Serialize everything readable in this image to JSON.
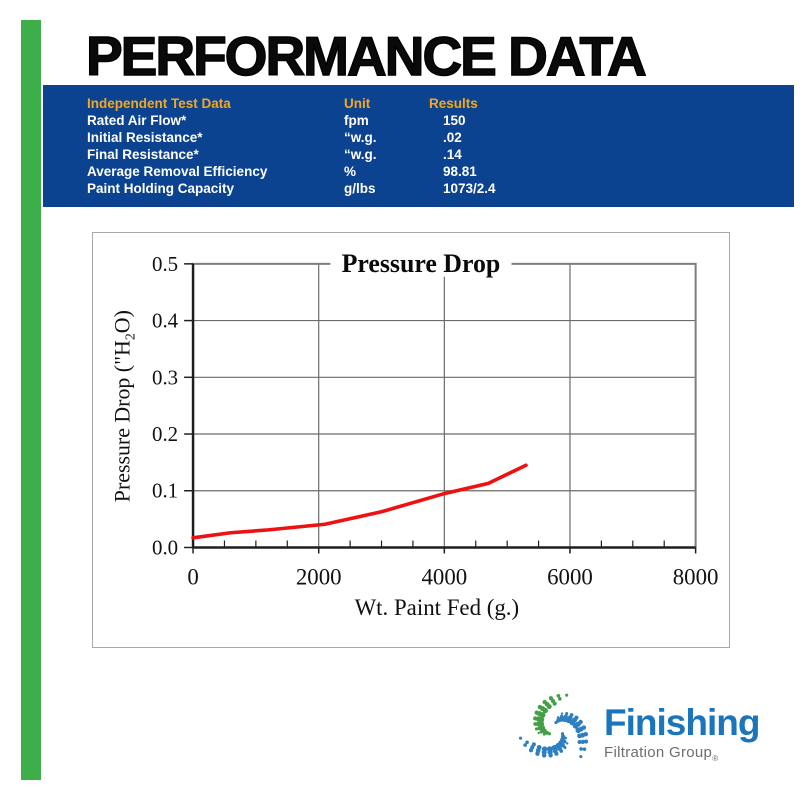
{
  "page": {
    "title": "PERFORMANCE DATA"
  },
  "colors": {
    "accent_green": "#3CAE4A",
    "panel_blue": "#0B4391",
    "header_orange": "#F5A81C",
    "row_text": "#FFFFFF",
    "line_red": "#EE1111",
    "brand_blue": "#1B75BC",
    "brand_gray": "#6D6E71"
  },
  "table": {
    "headers": [
      "Independent Test Data",
      "Unit",
      "Results"
    ],
    "rows": [
      {
        "label": "Rated Air Flow*",
        "unit": "fpm",
        "result": "150"
      },
      {
        "label": "Initial Resistance*",
        "unit": "“w.g.",
        "result": ".02"
      },
      {
        "label": "Final Resistance*",
        "unit": "“w.g.",
        "result": ".14"
      },
      {
        "label": "Average Removal Efficiency",
        "unit": "%",
        "result": "98.81"
      },
      {
        "label": "Paint Holding Capacity",
        "unit": "g/lbs",
        "result": "1073/2.4"
      }
    ]
  },
  "chart_data": {
    "type": "line",
    "title": "Pressure Drop",
    "xlabel": "Wt. Paint Fed (g.)",
    "ylabel": "Pressure Drop (\"H2O)",
    "ylabel_parts": {
      "pre": "Pressure Drop (\"H",
      "sub": "2",
      "post": "O)"
    },
    "xlim": [
      0,
      8000
    ],
    "ylim": [
      0,
      0.5
    ],
    "x_ticks": [
      0,
      2000,
      4000,
      6000,
      8000
    ],
    "x_tick_labels": [
      "0",
      "2000",
      "4000",
      "6000",
      "8000"
    ],
    "x_minor_step": 500,
    "y_ticks": [
      0,
      0.1,
      0.2,
      0.3,
      0.4,
      0.5
    ],
    "y_tick_labels": [
      "0.0",
      "0.1",
      "0.2",
      "0.3",
      "0.4",
      "0.5"
    ],
    "grid": true,
    "legend": "none",
    "series": [
      {
        "name": "Pressure Drop",
        "color": "#EE1111",
        "x": [
          0,
          600,
          1200,
          2100,
          3000,
          4000,
          4700,
          5300
        ],
        "y": [
          0.017,
          0.026,
          0.031,
          0.041,
          0.063,
          0.095,
          0.113,
          0.145
        ]
      }
    ]
  },
  "logo": {
    "brand": "Finishing",
    "subtitle": "Filtration Group",
    "registered": "®"
  }
}
